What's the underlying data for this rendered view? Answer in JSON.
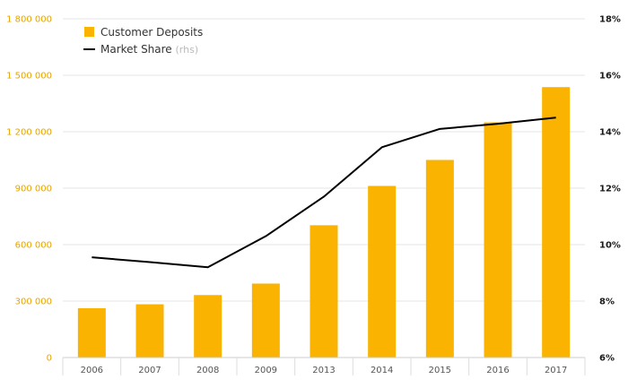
{
  "chart_data": {
    "type": "bar",
    "categories": [
      "2006",
      "2007",
      "2008",
      "2009",
      "2013",
      "2014",
      "2015",
      "2016",
      "2017"
    ],
    "series": [
      {
        "name": "Customer Deposits",
        "type": "bar",
        "axis": "left",
        "values": [
          262000,
          283000,
          332000,
          393000,
          703000,
          912000,
          1050000,
          1250000,
          1437000
        ]
      },
      {
        "name": "Market Share",
        "name_suffix": "(rhs)",
        "type": "line",
        "axis": "right",
        "values": [
          9.55,
          9.38,
          9.2,
          10.3,
          11.7,
          13.45,
          14.1,
          14.28,
          14.5
        ]
      }
    ],
    "y_left": {
      "range": [
        0,
        1800000
      ],
      "ticks": [
        0,
        300000,
        600000,
        900000,
        1200000,
        1500000,
        1800000
      ],
      "tick_labels": [
        "0",
        "300 000",
        "600 000",
        "900 000",
        "1 200 000",
        "1 500 000",
        "1 800 000"
      ]
    },
    "y_right": {
      "range": [
        6,
        18
      ],
      "ticks": [
        6,
        8,
        10,
        12,
        14,
        16,
        18
      ],
      "tick_labels": [
        "6%",
        "8%",
        "10%",
        "12%",
        "14%",
        "16%",
        "18%"
      ]
    },
    "grid": true,
    "legend": "top-left",
    "colors": {
      "bar": "#F9B300",
      "line": "#000000",
      "left_axis_text": "#E6A400",
      "right_axis_text": "#1A1A1A",
      "x_axis_text": "#555555",
      "legend_suffix": "#BBBBBB",
      "grid": "#E6E6E6"
    }
  }
}
